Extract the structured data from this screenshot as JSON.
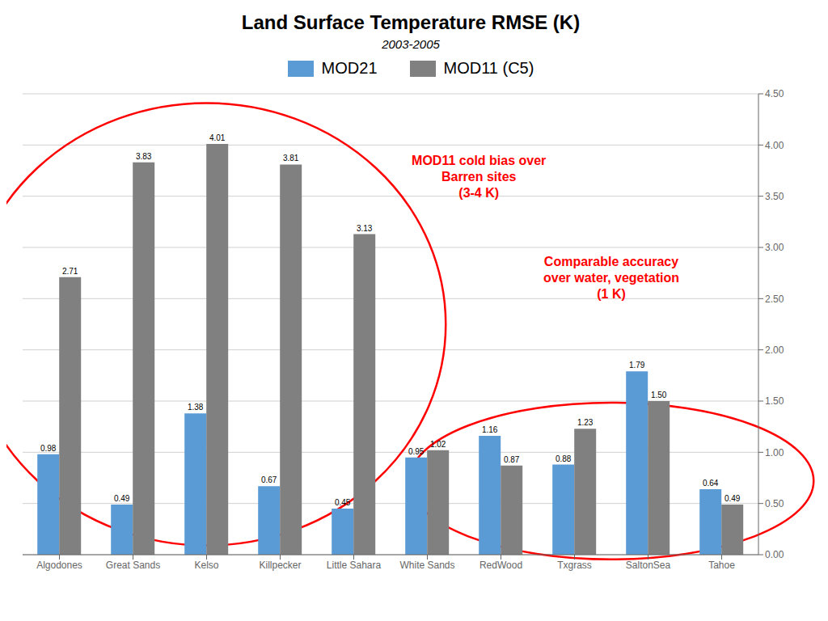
{
  "chart_data": {
    "type": "bar",
    "title": "Land Surface Temperature RMSE (K)",
    "subtitle": "2003-2005",
    "categories": [
      "Algodones",
      "Great Sands",
      "Kelso",
      "Killpecker",
      "Little Sahara",
      "White Sands",
      "RedWood",
      "Txgrass",
      "SaltonSea",
      "Tahoe"
    ],
    "series": [
      {
        "name": "MOD21",
        "color": "#5B9BD5",
        "values": [
          0.98,
          0.49,
          1.38,
          0.67,
          0.45,
          0.95,
          1.16,
          0.88,
          1.79,
          0.64
        ]
      },
      {
        "name": "MOD11 (C5)",
        "color": "#808080",
        "values": [
          2.71,
          3.83,
          4.01,
          3.81,
          3.13,
          1.02,
          0.87,
          1.23,
          1.5,
          0.49
        ],
        "value_labels": [
          "2.71",
          "3.83",
          "4.01",
          "3.81",
          "3.13",
          "1.02",
          "0.87",
          "1.23",
          "1.50",
          "0.49"
        ]
      }
    ],
    "ylim": [
      0,
      4.5
    ],
    "yticks": [
      {
        "value": 0,
        "label": "0.00"
      },
      {
        "value": 0.5,
        "label": "0.50"
      },
      {
        "value": 1,
        "label": "1.00"
      },
      {
        "value": 1.5,
        "label": "1.50"
      },
      {
        "value": 2,
        "label": "2.00"
      },
      {
        "value": 2.5,
        "label": "2.50"
      },
      {
        "value": 3,
        "label": "3.00"
      },
      {
        "value": 3.5,
        "label": "3.50"
      },
      {
        "value": 4,
        "label": "4.00"
      },
      {
        "value": 4.5,
        "label": "4.50"
      }
    ],
    "grid": true,
    "legend": "top",
    "data_labels": true,
    "annotations": [
      {
        "text": "MOD11 cold bias over\nBarren sites\n(3-4 K)",
        "color": "red"
      },
      {
        "text": "Comparable accuracy\nover water, vegetation\n(1 K)",
        "color": "red"
      }
    ]
  }
}
